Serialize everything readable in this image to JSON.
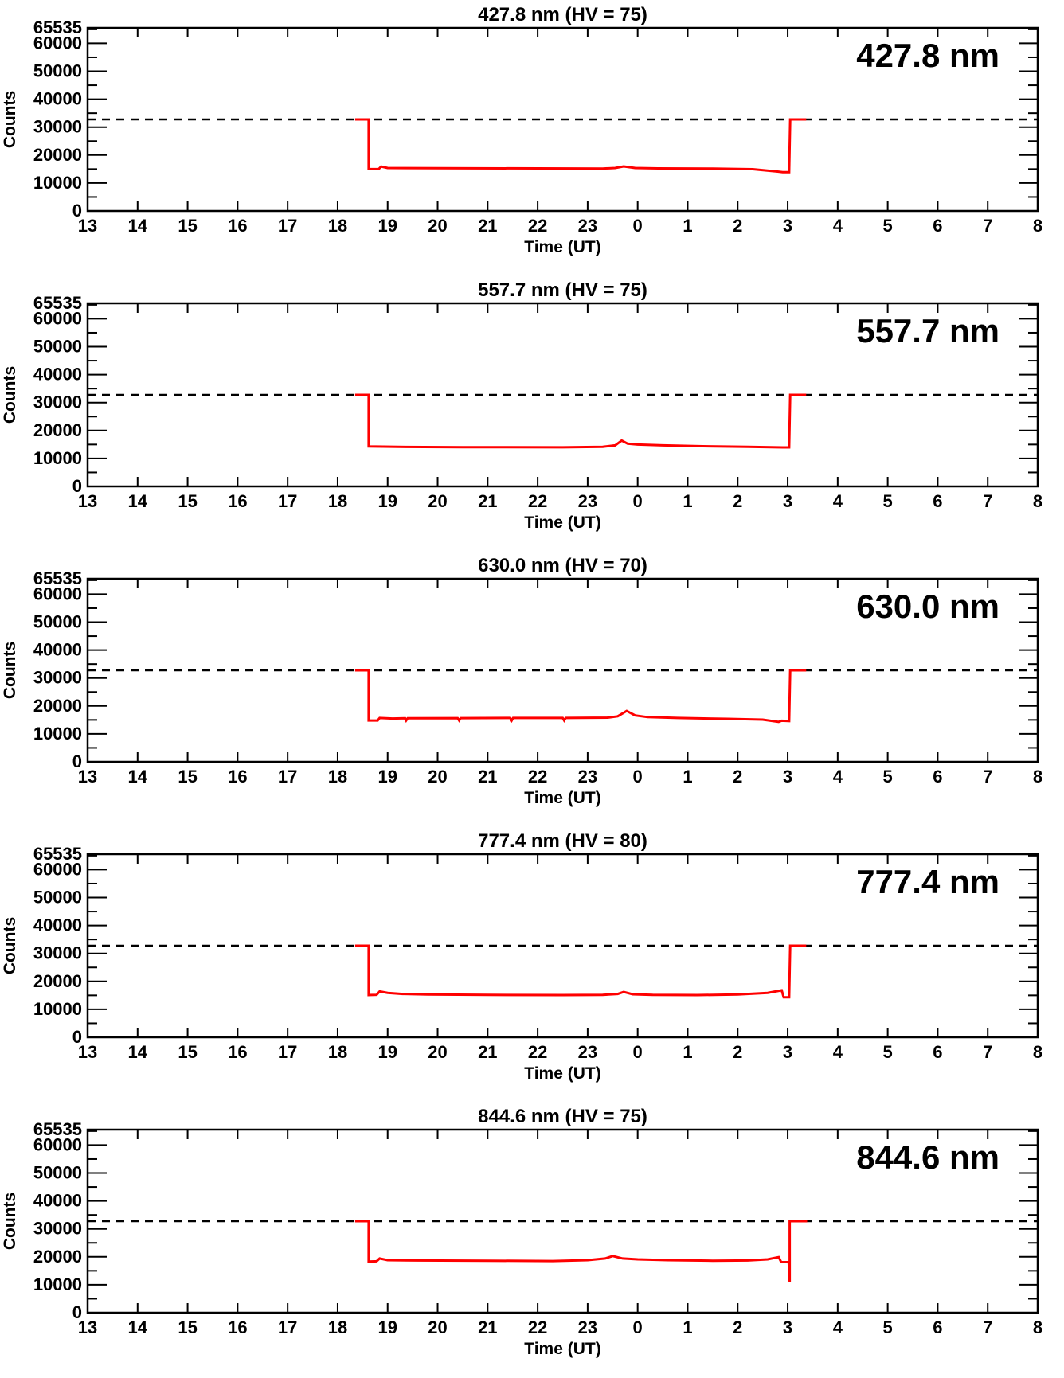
{
  "page": {
    "description": "Five stacked photometer count time-series panels, one per emission wavelength, each with a dashed half-scale reference line and a red counts trace spanning the observing night."
  },
  "colors": {
    "series": "#ff0000",
    "axes_and_text": "#000000",
    "background": "#ffffff"
  },
  "chart_data": {
    "type": "line",
    "layout": "5 stacked panels sharing identical axes",
    "axes": {
      "xlabel": "Time (UT)",
      "ylabel": "Counts",
      "x_tick_labels": [
        "13",
        "14",
        "15",
        "16",
        "17",
        "18",
        "19",
        "20",
        "21",
        "22",
        "23",
        "0",
        "1",
        "2",
        "3",
        "4",
        "5",
        "6",
        "7",
        "8"
      ],
      "x_span_hours": 19,
      "ylim": [
        0,
        65535
      ],
      "y_major_ticks": [
        0,
        10000,
        20000,
        30000,
        40000,
        50000,
        60000
      ],
      "y_tick_labels": [
        "0",
        "10000",
        "20000",
        "30000",
        "40000",
        "50000",
        "60000"
      ],
      "y_top_tick_label": "65535",
      "y_minor_tick_step": 5000,
      "grid": false,
      "legend": "none",
      "ticks": "inward on all four spines"
    },
    "dashed_reference_level": 32767,
    "series_color": "#ff0000",
    "points_units": "x = hours after 13:00 UT, y = counts",
    "panels": [
      {
        "title": "427.8 nm (HV = 75)",
        "label": "427.8 nm",
        "wavelength_nm": "427.8",
        "hv": "75",
        "points": [
          [
            5.35,
            32767
          ],
          [
            5.62,
            32767
          ],
          [
            5.62,
            15000
          ],
          [
            5.82,
            15000
          ],
          [
            5.87,
            15900
          ],
          [
            6.0,
            15400
          ],
          [
            7.0,
            15300
          ],
          [
            9.0,
            15250
          ],
          [
            10.3,
            15200
          ],
          [
            10.55,
            15400
          ],
          [
            10.72,
            15950
          ],
          [
            10.95,
            15400
          ],
          [
            11.4,
            15250
          ],
          [
            12.5,
            15150
          ],
          [
            13.3,
            14950
          ],
          [
            13.8,
            14100
          ],
          [
            13.9,
            13900
          ],
          [
            14.03,
            13900
          ],
          [
            14.05,
            32767
          ],
          [
            14.37,
            32767
          ]
        ]
      },
      {
        "title": "557.7 nm (HV = 75)",
        "label": "557.7 nm",
        "wavelength_nm": "557.7",
        "hv": "75",
        "points": [
          [
            5.35,
            32767
          ],
          [
            5.62,
            32767
          ],
          [
            5.62,
            14300
          ],
          [
            6.2,
            14150
          ],
          [
            7.5,
            14050
          ],
          [
            9.5,
            14000
          ],
          [
            10.3,
            14200
          ],
          [
            10.55,
            14700
          ],
          [
            10.68,
            16400
          ],
          [
            10.8,
            15300
          ],
          [
            11.0,
            15000
          ],
          [
            11.5,
            14700
          ],
          [
            12.3,
            14400
          ],
          [
            13.2,
            14150
          ],
          [
            13.9,
            13950
          ],
          [
            14.03,
            13950
          ],
          [
            14.05,
            32767
          ],
          [
            14.37,
            32767
          ]
        ]
      },
      {
        "title": "630.0 nm (HV = 70)",
        "label": "630.0 nm",
        "wavelength_nm": "630.0",
        "hv": "70",
        "points": [
          [
            5.35,
            32767
          ],
          [
            5.62,
            32767
          ],
          [
            5.62,
            14800
          ],
          [
            5.8,
            14800
          ],
          [
            5.84,
            15700
          ],
          [
            6.1,
            15500
          ],
          [
            6.35,
            15600
          ],
          [
            6.37,
            14800
          ],
          [
            6.4,
            15600
          ],
          [
            7.4,
            15650
          ],
          [
            7.43,
            14800
          ],
          [
            7.46,
            15650
          ],
          [
            8.45,
            15700
          ],
          [
            8.48,
            14800
          ],
          [
            8.51,
            15700
          ],
          [
            9.5,
            15700
          ],
          [
            9.53,
            14800
          ],
          [
            9.56,
            15700
          ],
          [
            10.4,
            15800
          ],
          [
            10.6,
            16300
          ],
          [
            10.78,
            18200
          ],
          [
            10.95,
            16600
          ],
          [
            11.2,
            16000
          ],
          [
            11.8,
            15700
          ],
          [
            12.8,
            15400
          ],
          [
            13.5,
            15100
          ],
          [
            13.82,
            14300
          ],
          [
            13.88,
            14700
          ],
          [
            14.03,
            14600
          ],
          [
            14.05,
            32767
          ],
          [
            14.37,
            32767
          ]
        ]
      },
      {
        "title": "777.4 nm (HV = 80)",
        "label": "777.4 nm",
        "wavelength_nm": "777.4",
        "hv": "80",
        "points": [
          [
            5.35,
            32767
          ],
          [
            5.62,
            32767
          ],
          [
            5.62,
            15100
          ],
          [
            5.78,
            15200
          ],
          [
            5.84,
            16400
          ],
          [
            6.0,
            15900
          ],
          [
            6.3,
            15500
          ],
          [
            6.8,
            15300
          ],
          [
            8.0,
            15150
          ],
          [
            9.5,
            15100
          ],
          [
            10.3,
            15200
          ],
          [
            10.6,
            15500
          ],
          [
            10.72,
            16200
          ],
          [
            10.9,
            15400
          ],
          [
            11.3,
            15200
          ],
          [
            12.2,
            15100
          ],
          [
            13.0,
            15300
          ],
          [
            13.6,
            15900
          ],
          [
            13.88,
            16800
          ],
          [
            13.92,
            14300
          ],
          [
            14.03,
            14300
          ],
          [
            14.05,
            32767
          ],
          [
            14.37,
            32767
          ]
        ]
      },
      {
        "title": "844.6 nm (HV = 75)",
        "label": "844.6 nm",
        "wavelength_nm": "844.6",
        "hv": "75",
        "points": [
          [
            5.35,
            32767
          ],
          [
            5.62,
            32767
          ],
          [
            5.62,
            18300
          ],
          [
            5.78,
            18400
          ],
          [
            5.84,
            19400
          ],
          [
            6.0,
            18800
          ],
          [
            6.6,
            18700
          ],
          [
            8.0,
            18600
          ],
          [
            9.3,
            18500
          ],
          [
            10.0,
            18800
          ],
          [
            10.35,
            19400
          ],
          [
            10.5,
            20300
          ],
          [
            10.7,
            19400
          ],
          [
            11.0,
            19100
          ],
          [
            11.6,
            18800
          ],
          [
            12.5,
            18600
          ],
          [
            13.2,
            18700
          ],
          [
            13.6,
            19100
          ],
          [
            13.82,
            19900
          ],
          [
            13.87,
            18100
          ],
          [
            14.02,
            18100
          ],
          [
            14.04,
            11000
          ],
          [
            14.04,
            32767
          ],
          [
            14.39,
            32767
          ]
        ]
      }
    ]
  }
}
